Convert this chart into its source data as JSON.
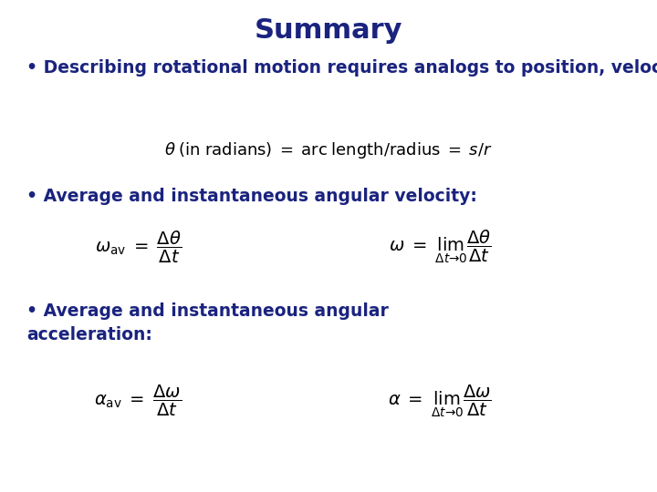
{
  "title": "Summary",
  "title_color": "#1a237e",
  "title_fontsize": 22,
  "background_color": "#ffffff",
  "text_color": "#1a237e",
  "bullet1": "• Describing rotational motion requires analogs to position, velocity, and acceleration",
  "bullet2": "• Average and instantaneous angular velocity:",
  "bullet3_line1": "• Average and instantaneous angular",
  "bullet3_line2": "acceleration:",
  "eq1": "$\\theta \\; (\\mathrm{in\\; radians}) \\;=\\; \\mathrm{arc\\; length/radius} \\;=\\; s/r$",
  "eq_omega_av": "$\\omega_\\mathrm{av} \\;=\\; \\dfrac{\\Delta\\theta}{\\Delta t}$",
  "eq_omega": "$\\omega \\;=\\; \\lim_{\\Delta t \\to 0} \\dfrac{\\Delta\\theta}{\\Delta t}$",
  "eq_alpha_av": "$\\alpha_\\mathrm{av} \\;=\\; \\dfrac{\\Delta\\omega}{\\Delta t}$",
  "eq_alpha": "$\\alpha \\;=\\; \\lim_{\\Delta t \\to 0} \\dfrac{\\Delta\\omega}{\\Delta t}$",
  "figsize": [
    7.2,
    5.4
  ],
  "dpi": 100
}
